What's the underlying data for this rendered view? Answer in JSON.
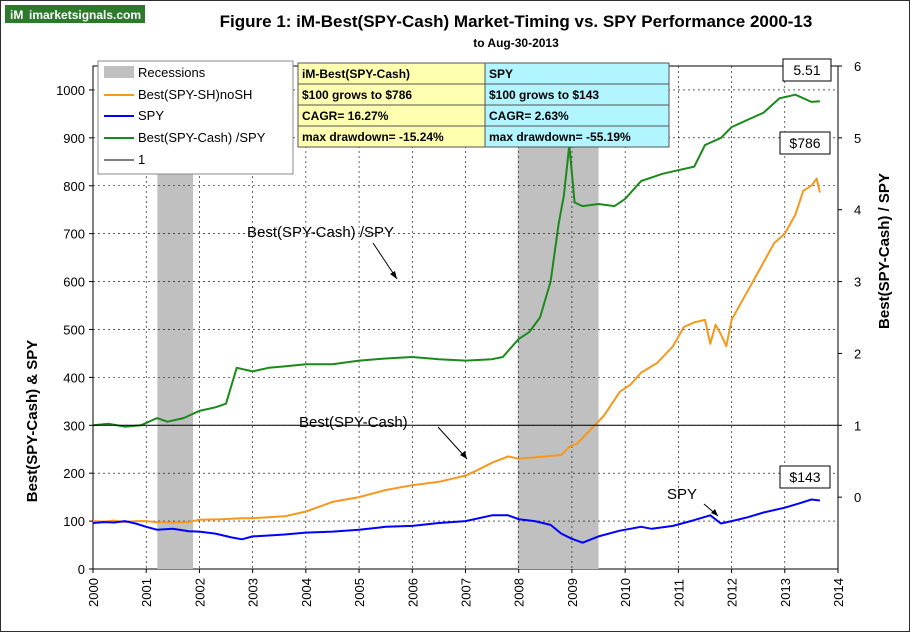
{
  "logo": {
    "badge": "iM",
    "text": "imarketsignals.com"
  },
  "chart_data": {
    "type": "line",
    "title": "Figure 1:  iM-Best(SPY-Cash) Market-Timing  vs.  SPY  Performance  2000-13",
    "subtitle": "to Aug-30-2013",
    "ylabel_left": "Best(SPY-Cash)  &  SPY",
    "ylabel_right": "Best(SPY-Cash) / SPY",
    "x_ticks": [
      "2000",
      "2001",
      "2002",
      "2003",
      "2004",
      "2005",
      "2006",
      "2007",
      "2008",
      "2009",
      "2010",
      "2011",
      "2012",
      "2013",
      "2014"
    ],
    "xlim": [
      2000,
      2014
    ],
    "ylim_left": [
      0,
      1050
    ],
    "y_ticks_left": [
      "0",
      "100",
      "200",
      "300",
      "400",
      "500",
      "600",
      "700",
      "800",
      "900",
      "1000"
    ],
    "ylim_right": [
      -1,
      6
    ],
    "y_ticks_right": [
      "0",
      "1",
      "2",
      "3",
      "4",
      "5",
      "6"
    ],
    "grid": true,
    "legend_position": "top-left",
    "recessions": [
      [
        2001.21,
        2001.88
      ],
      [
        2007.98,
        2009.5
      ]
    ],
    "series": [
      {
        "name": "Best(SPY-SH)noSH",
        "color": "#F7981D",
        "axis": "left",
        "x": [
          2000.0,
          2000.2,
          2000.4,
          2000.6,
          2000.8,
          2001.0,
          2001.2,
          2001.5,
          2001.8,
          2002.0,
          2002.4,
          2002.8,
          2003.0,
          2003.3,
          2003.6,
          2004.0,
          2004.5,
          2005.0,
          2005.5,
          2006.0,
          2006.5,
          2007.0,
          2007.2,
          2007.5,
          2007.8,
          2008.0,
          2008.4,
          2008.8,
          2008.95,
          2009.1,
          2009.3,
          2009.6,
          2009.9,
          2010.1,
          2010.3,
          2010.6,
          2010.9,
          2011.1,
          2011.3,
          2011.5,
          2011.6,
          2011.7,
          2011.8,
          2011.9,
          2012.0,
          2012.2,
          2012.4,
          2012.6,
          2012.8,
          2013.0,
          2013.2,
          2013.35,
          2013.5,
          2013.6,
          2013.66
        ],
        "y": [
          100,
          99,
          101,
          98,
          100,
          100,
          98,
          97,
          98,
          103,
          104,
          106,
          106,
          108,
          110,
          120,
          140,
          150,
          165,
          175,
          182,
          195,
          205,
          222,
          235,
          230,
          234,
          238,
          255,
          262,
          285,
          320,
          370,
          385,
          410,
          430,
          465,
          505,
          515,
          520,
          470,
          510,
          490,
          465,
          520,
          560,
          600,
          640,
          680,
          700,
          740,
          790,
          800,
          815,
          786
        ]
      },
      {
        "name": "SPY",
        "color": "#0000FF",
        "axis": "left",
        "x": [
          2000.0,
          2000.2,
          2000.4,
          2000.6,
          2000.8,
          2001.0,
          2001.2,
          2001.5,
          2001.8,
          2002.0,
          2002.3,
          2002.6,
          2002.8,
          2003.0,
          2003.3,
          2003.6,
          2004.0,
          2004.5,
          2005.0,
          2005.5,
          2006.0,
          2006.5,
          2007.0,
          2007.5,
          2007.8,
          2008.0,
          2008.3,
          2008.6,
          2008.8,
          2009.0,
          2009.2,
          2009.5,
          2009.9,
          2010.3,
          2010.5,
          2010.9,
          2011.3,
          2011.6,
          2011.8,
          2012.0,
          2012.3,
          2012.6,
          2013.0,
          2013.3,
          2013.5,
          2013.66
        ],
        "y": [
          96,
          98,
          97,
          100,
          95,
          88,
          82,
          84,
          79,
          78,
          74,
          66,
          62,
          68,
          70,
          72,
          76,
          78,
          82,
          88,
          90,
          96,
          100,
          112,
          112,
          104,
          100,
          92,
          74,
          63,
          55,
          68,
          80,
          88,
          84,
          90,
          102,
          112,
          95,
          100,
          108,
          118,
          128,
          138,
          145,
          143
        ]
      },
      {
        "name": "Best(SPY-Cash) /SPY",
        "color": "#1A8A1A",
        "axis": "right",
        "x": [
          2000.0,
          2000.3,
          2000.6,
          2000.9,
          2001.2,
          2001.4,
          2001.7,
          2002.0,
          2002.3,
          2002.5,
          2002.7,
          2003.0,
          2003.3,
          2003.6,
          2004.0,
          2004.5,
          2005.0,
          2005.5,
          2006.0,
          2006.5,
          2007.0,
          2007.5,
          2007.7,
          2008.0,
          2008.2,
          2008.4,
          2008.6,
          2008.75,
          2008.85,
          2008.95,
          2009.05,
          2009.2,
          2009.5,
          2009.8,
          2010.0,
          2010.3,
          2010.5,
          2010.7,
          2011.0,
          2011.3,
          2011.5,
          2011.8,
          2012.0,
          2012.3,
          2012.6,
          2012.9,
          2013.2,
          2013.5,
          2013.66
        ],
        "y": [
          1.0,
          1.02,
          0.98,
          1.0,
          1.1,
          1.05,
          1.1,
          1.2,
          1.25,
          1.3,
          1.8,
          1.75,
          1.8,
          1.82,
          1.85,
          1.85,
          1.9,
          1.93,
          1.95,
          1.92,
          1.9,
          1.92,
          1.95,
          2.2,
          2.3,
          2.5,
          3.0,
          3.8,
          4.2,
          4.9,
          4.1,
          4.05,
          4.08,
          4.05,
          4.15,
          4.4,
          4.45,
          4.5,
          4.55,
          4.6,
          4.9,
          5.0,
          5.15,
          5.25,
          5.35,
          5.55,
          5.6,
          5.5,
          5.51
        ]
      },
      {
        "name": "1",
        "color": "#000000",
        "axis": "right",
        "x": [
          2000,
          2014
        ],
        "y": [
          1,
          1
        ]
      }
    ],
    "legend": [
      {
        "label": "Recessions",
        "kind": "box",
        "color": "#C0C0C0"
      },
      {
        "label": "Best(SPY-SH)noSH",
        "kind": "line",
        "color": "#F7981D"
      },
      {
        "label": "SPY",
        "kind": "line",
        "color": "#0000FF"
      },
      {
        "label": "Best(SPY-Cash) /SPY",
        "kind": "line",
        "color": "#1A8A1A"
      },
      {
        "label": "1",
        "kind": "line",
        "color": "#000000"
      }
    ],
    "stats_table": {
      "left": {
        "header": "iM-Best(SPY-Cash)",
        "rows": [
          "$100 grows to $786",
          "CAGR=  16.27%",
          "max drawdown= -15.24%"
        ],
        "color": "#FFFFB0"
      },
      "right": {
        "header": "SPY",
        "rows": [
          "$100 grows to $143",
          "CAGR=  2.63%",
          "max drawdown= -55.19%"
        ],
        "color": "#B0F5FF"
      }
    },
    "annotations": [
      {
        "text": "Best(SPY-Cash) /SPY",
        "x": 2006.0,
        "y": 2.0
      },
      {
        "text": "Best(SPY-Cash)",
        "x": 2007.2,
        "y": 210
      },
      {
        "text": "SPY",
        "x": 2011.8,
        "y": 105
      }
    ],
    "value_boxes": [
      {
        "text": "5.51"
      },
      {
        "text": "$786"
      },
      {
        "text": "$143"
      }
    ]
  }
}
